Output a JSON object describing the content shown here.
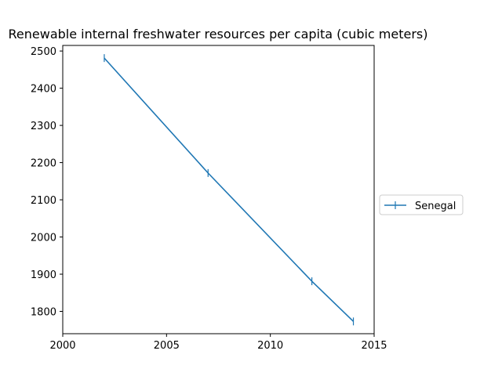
{
  "chart_data": {
    "type": "line",
    "title": "Renewable internal freshwater resources per capita (cubic meters)",
    "xlabel": "",
    "ylabel": "",
    "xlim": [
      2000,
      2015
    ],
    "ylim": [
      1740,
      2515
    ],
    "x_ticks": [
      2000,
      2005,
      2010,
      2015
    ],
    "y_ticks": [
      1800,
      1900,
      2000,
      2100,
      2200,
      2300,
      2400,
      2500
    ],
    "grid": false,
    "legend_position": "right",
    "series": [
      {
        "name": "Senegal",
        "color": "#1f77b4",
        "marker": "|",
        "x": [
          2002,
          2007,
          2012,
          2014
        ],
        "y": [
          2481,
          2172,
          1881,
          1773
        ]
      }
    ]
  }
}
